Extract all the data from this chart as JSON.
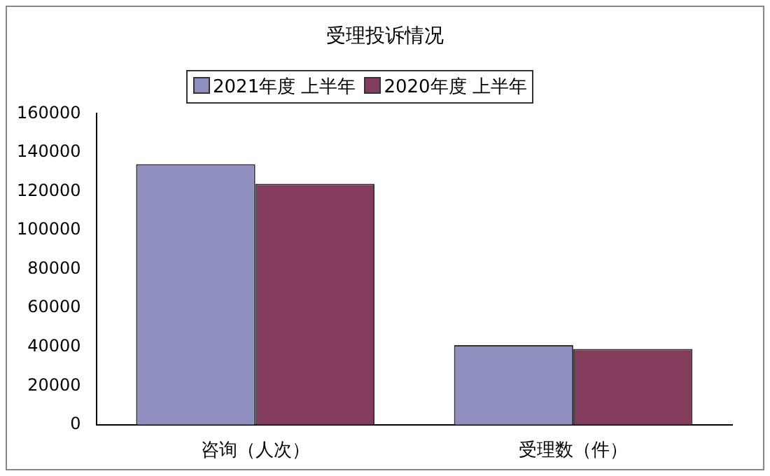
{
  "chart_data": {
    "type": "bar",
    "title": "受理投诉情况",
    "categories": [
      "咨询（人次）",
      "受理数（件）"
    ],
    "series": [
      {
        "name": "2021年度 上半年",
        "color": "#9090c0",
        "values": [
          134000,
          41000
        ]
      },
      {
        "name": "2020年度 上半年",
        "color": "#843c5c",
        "values": [
          124000,
          39000
        ]
      }
    ],
    "ylim": [
      0,
      160000
    ],
    "yticks": [
      0,
      20000,
      40000,
      60000,
      80000,
      100000,
      120000,
      140000,
      160000
    ],
    "grid": false,
    "legend": "top"
  }
}
